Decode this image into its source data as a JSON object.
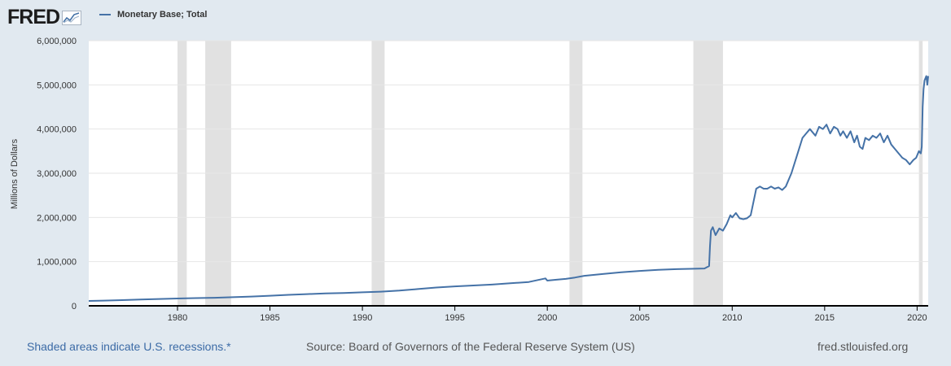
{
  "header": {
    "logo_text": "FRED",
    "logo_icon": "chart-line-icon"
  },
  "legend": {
    "series_name": "Monetary Base; Total",
    "color": "#4572a7"
  },
  "footer": {
    "recession_note": "Shaded areas indicate U.S. recessions.*",
    "source": "Source: Board of Governors of the Federal Reserve System (US)",
    "site": "fred.stlouisfed.org"
  },
  "chart_data": {
    "type": "line",
    "title": "",
    "xlabel": "",
    "ylabel": "Millions of Dollars",
    "xlim": [
      1975.2,
      2020.6
    ],
    "ylim": [
      0,
      6000000
    ],
    "x_ticks": [
      1980,
      1985,
      1990,
      1995,
      2000,
      2005,
      2010,
      2015,
      2020
    ],
    "y_ticks": [
      0,
      1000000,
      2000000,
      3000000,
      4000000,
      5000000,
      6000000
    ],
    "y_tick_labels": [
      "0",
      "1,000,000",
      "2,000,000",
      "3,000,000",
      "4,000,000",
      "5,000,000",
      "6,000,000"
    ],
    "grid": "horizontal",
    "line_color": "#4572a7",
    "recession_color": "#e1e1e1",
    "recessions": [
      [
        1980.0,
        1980.5
      ],
      [
        1981.5,
        1982.9
      ],
      [
        1990.5,
        1991.2
      ],
      [
        2001.2,
        2001.9
      ],
      [
        2007.9,
        2009.5
      ],
      [
        2020.1,
        2020.3
      ]
    ],
    "series": [
      {
        "name": "Monetary Base; Total",
        "x": [
          1975.2,
          1976,
          1977,
          1978,
          1979,
          1980,
          1981,
          1982,
          1983,
          1984,
          1985,
          1986,
          1987,
          1988,
          1989,
          1990,
          1991,
          1992,
          1993,
          1994,
          1995,
          1996,
          1997,
          1998,
          1999,
          1999.9,
          2000.0,
          2000.1,
          2000.5,
          2001,
          2001.5,
          2002,
          2003,
          2004,
          2005,
          2006,
          2007,
          2007.5,
          2008.0,
          2008.5,
          2008.75,
          2008.8,
          2008.85,
          2008.95,
          2009.1,
          2009.3,
          2009.5,
          2009.7,
          2009.9,
          2010.0,
          2010.2,
          2010.4,
          2010.6,
          2010.8,
          2011.0,
          2011.15,
          2011.3,
          2011.5,
          2011.7,
          2011.9,
          2012.1,
          2012.3,
          2012.5,
          2012.7,
          2012.9,
          2013.2,
          2013.5,
          2013.8,
          2014.0,
          2014.2,
          2014.5,
          2014.7,
          2014.9,
          2015.1,
          2015.3,
          2015.5,
          2015.7,
          2015.85,
          2016.0,
          2016.2,
          2016.4,
          2016.6,
          2016.75,
          2016.9,
          2017.05,
          2017.2,
          2017.4,
          2017.6,
          2017.8,
          2018.0,
          2018.2,
          2018.4,
          2018.6,
          2018.8,
          2019.0,
          2019.2,
          2019.4,
          2019.6,
          2019.8,
          2019.95,
          2020.1,
          2020.2,
          2020.25,
          2020.3,
          2020.35,
          2020.4,
          2020.5,
          2020.55,
          2020.6
        ],
        "values": [
          110000,
          118000,
          128000,
          142000,
          155000,
          165000,
          175000,
          182000,
          195000,
          210000,
          228000,
          248000,
          265000,
          280000,
          290000,
          305000,
          320000,
          345000,
          380000,
          415000,
          440000,
          460000,
          480000,
          510000,
          540000,
          620000,
          570000,
          575000,
          590000,
          610000,
          640000,
          680000,
          720000,
          760000,
          790000,
          815000,
          830000,
          835000,
          840000,
          845000,
          900000,
          1350000,
          1700000,
          1780000,
          1600000,
          1750000,
          1700000,
          1850000,
          2050000,
          2000000,
          2100000,
          1980000,
          1960000,
          1980000,
          2050000,
          2350000,
          2650000,
          2700000,
          2650000,
          2650000,
          2700000,
          2650000,
          2680000,
          2620000,
          2700000,
          3000000,
          3400000,
          3800000,
          3900000,
          4000000,
          3850000,
          4050000,
          4000000,
          4100000,
          3900000,
          4050000,
          4000000,
          3850000,
          3950000,
          3800000,
          3950000,
          3700000,
          3850000,
          3600000,
          3550000,
          3800000,
          3750000,
          3850000,
          3800000,
          3900000,
          3700000,
          3850000,
          3650000,
          3550000,
          3450000,
          3350000,
          3300000,
          3200000,
          3300000,
          3350000,
          3500000,
          3450000,
          3600000,
          4500000,
          4900000,
          5100000,
          5200000,
          5000000,
          5200000
        ]
      }
    ]
  }
}
